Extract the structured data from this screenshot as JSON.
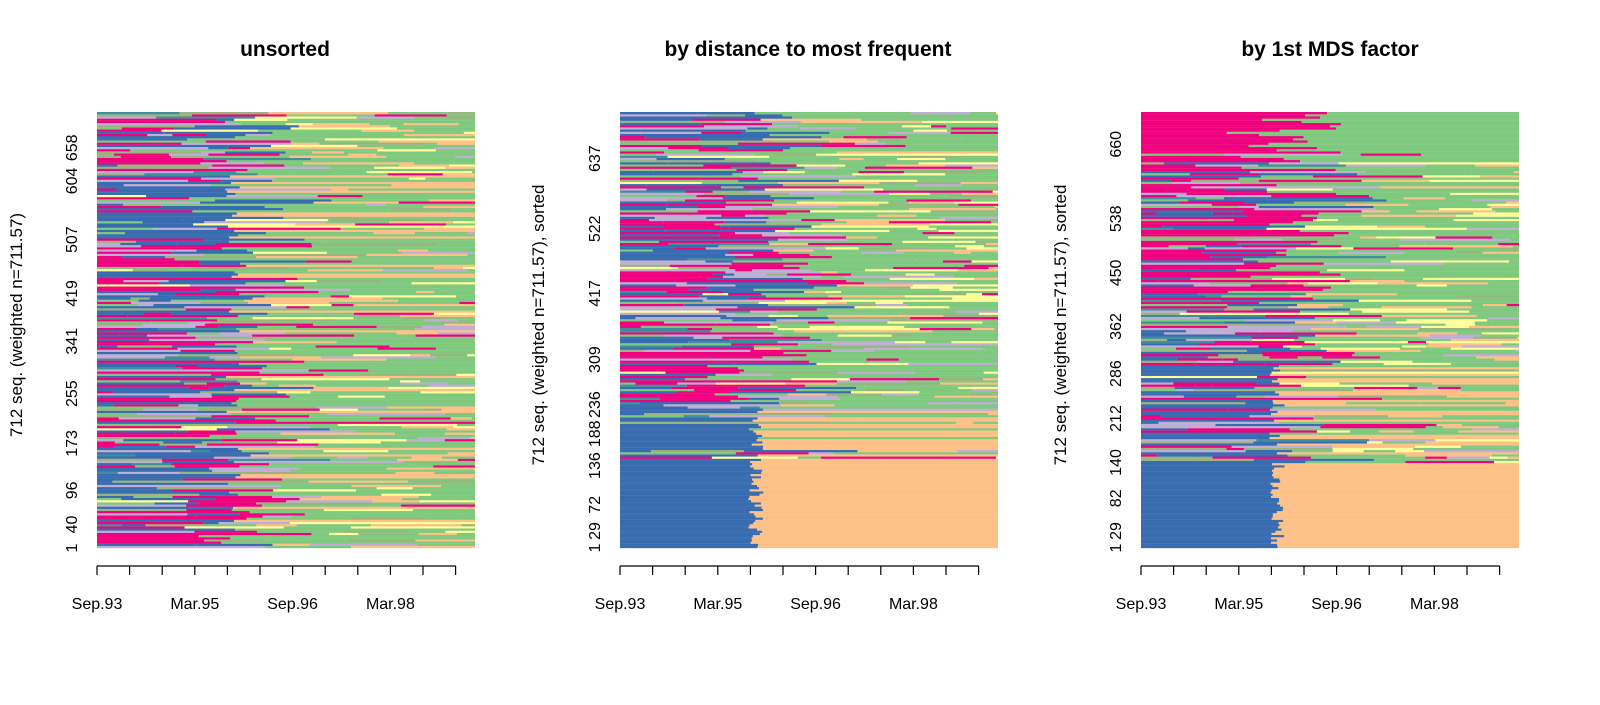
{
  "palette": {
    "blue": "#386CB0",
    "pink": "#F0027F",
    "green": "#7FC97F",
    "orange": "#FDC086",
    "yellow": "#FFFF99",
    "lavender": "#BEAED4",
    "olive": "#9BB37E",
    "teal": "#3F8F9B"
  },
  "chart_data": [
    {
      "type": "heatmap",
      "title": "unsorted",
      "ylabel": "712 seq. (weighted n=711.57)",
      "x_tick_labels": [
        "Sep.93",
        "Mar.95",
        "Sep.96",
        "Mar.98"
      ],
      "x_tick_count": 12,
      "y_tick_labels": [
        "1",
        "40",
        "96",
        "173",
        "255",
        "341",
        "419",
        "507",
        "604",
        "658"
      ],
      "y_tick_fractions": [
        0.0,
        0.054,
        0.132,
        0.24,
        0.354,
        0.474,
        0.584,
        0.707,
        0.842,
        0.918
      ],
      "sorting": "unsorted",
      "rows_shown": 200
    },
    {
      "type": "heatmap",
      "title": "by distance to most frequent",
      "ylabel": "712 seq. (weighted n=711.57), sorted",
      "x_tick_labels": [
        "Sep.93",
        "Mar.95",
        "Sep.96",
        "Mar.98"
      ],
      "x_tick_count": 12,
      "y_tick_labels": [
        "1",
        "29",
        "72",
        "136",
        "188",
        "236",
        "309",
        "417",
        "522",
        "637"
      ],
      "y_tick_fractions": [
        0.0,
        0.039,
        0.099,
        0.189,
        0.262,
        0.329,
        0.432,
        0.584,
        0.732,
        0.893
      ],
      "sorting": "distance",
      "rows_shown": 200
    },
    {
      "type": "heatmap",
      "title": "by 1st MDS factor",
      "ylabel": "712 seq. (weighted n=711.57), sorted",
      "x_tick_labels": [
        "Sep.93",
        "Mar.95",
        "Sep.96",
        "Mar.98"
      ],
      "x_tick_count": 12,
      "y_tick_labels": [
        "1",
        "29",
        "82",
        "140",
        "212",
        "286",
        "362",
        "450",
        "538",
        "660"
      ],
      "y_tick_fractions": [
        0.0,
        0.039,
        0.114,
        0.196,
        0.297,
        0.4,
        0.508,
        0.631,
        0.755,
        0.926
      ],
      "sorting": "mds",
      "rows_shown": 200
    }
  ]
}
